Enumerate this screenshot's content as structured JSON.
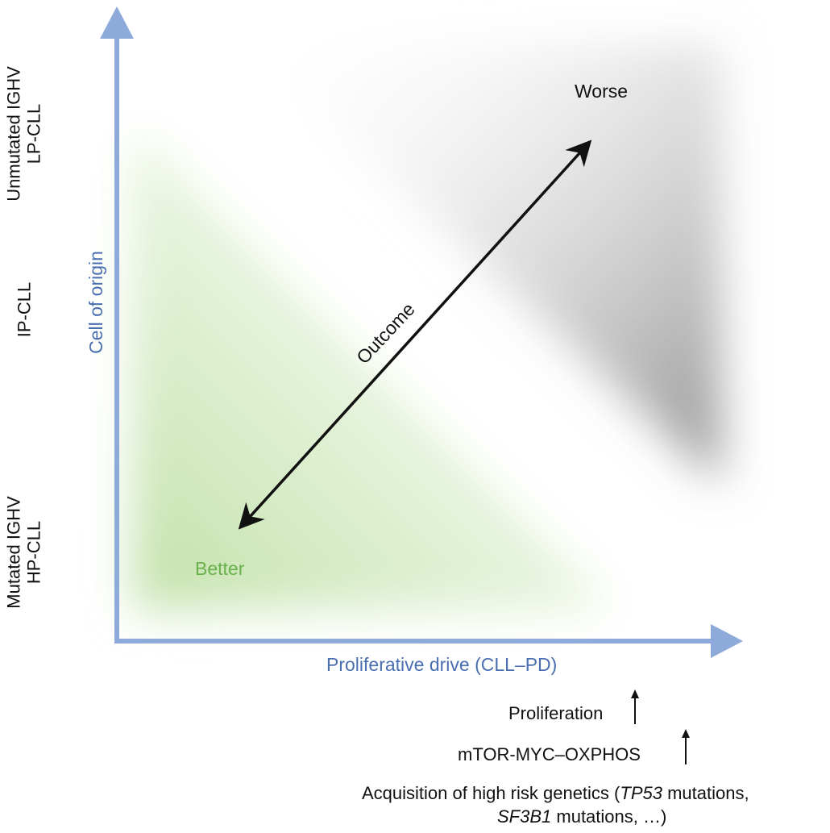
{
  "y_axis": {
    "title": "Cell of origin",
    "top_label_line1": "Unmutated IGHV",
    "top_label_line2": "LP-CLL",
    "mid_label": "IP-CLL",
    "bottom_label_line1": "Mutated IGHV",
    "bottom_label_line2": "HP-CLL"
  },
  "x_axis": {
    "title": "Proliferative drive (CLL–PD)"
  },
  "quadrants": {
    "worse_label": "Worse",
    "better_label": "Better",
    "outcome_label": "Outcome"
  },
  "drivers": {
    "proliferation": "Proliferation",
    "pathway": "mTOR-MYC–OXPHOS",
    "genetics_prefix": "Acquisition of high risk genetics (",
    "gene1": "TP53",
    "genetics_middle": " mutations,",
    "gene2": "SF3B1",
    "genetics_suffix": " mutations, …)"
  },
  "colors": {
    "axis": "#8eaadb",
    "axis_text": "#4a6fb0",
    "better": "#6ab04c",
    "worse_shade": "#9a9a9a",
    "better_shade": "#cfe8bf"
  }
}
